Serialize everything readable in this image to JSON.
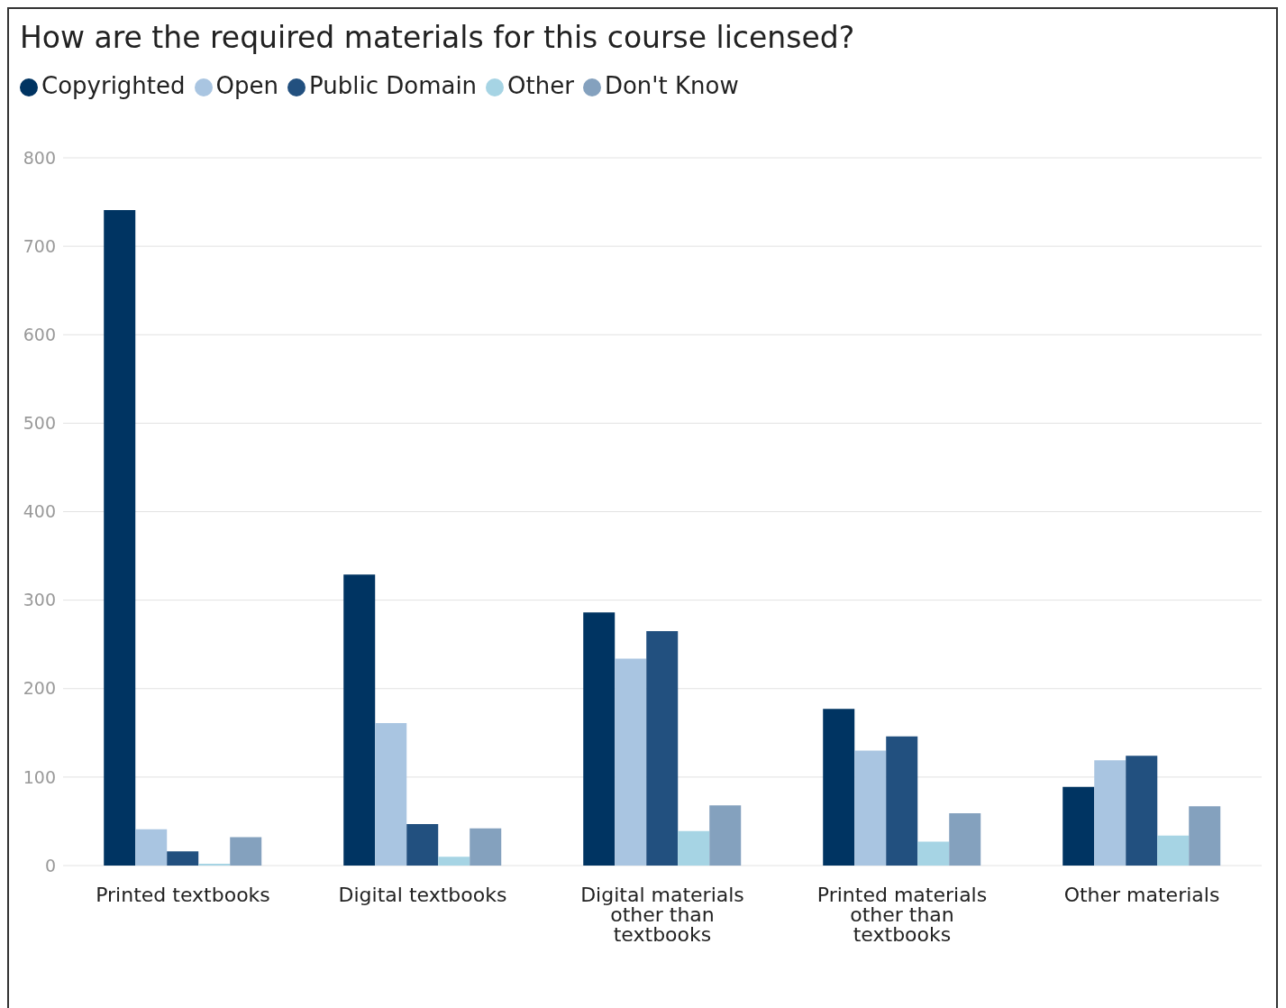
{
  "chart_data": {
    "type": "bar",
    "title": "How are the required materials for this course licensed?",
    "categories": [
      "Printed textbooks",
      "Digital textbooks",
      "Digital materials other than textbooks",
      "Printed materials other than textbooks",
      "Other materials"
    ],
    "series": [
      {
        "name": "Copyrighted",
        "color": "#003462",
        "values": [
          741,
          329,
          286,
          177,
          89
        ]
      },
      {
        "name": "Open",
        "color": "#a9c5e1",
        "values": [
          41,
          161,
          234,
          130,
          119
        ]
      },
      {
        "name": "Public Domain",
        "color": "#22507f",
        "values": [
          16,
          47,
          265,
          146,
          124
        ]
      },
      {
        "name": "Other",
        "color": "#a6d4e4",
        "values": [
          2,
          10,
          39,
          27,
          34
        ]
      },
      {
        "name": "Don't Know",
        "color": "#84a1be",
        "values": [
          32,
          42,
          68,
          59,
          67
        ]
      }
    ],
    "ylim": [
      0,
      800
    ],
    "yticks": [
      0,
      100,
      200,
      300,
      400,
      500,
      600,
      700,
      800
    ],
    "grid": "y",
    "legend": "top left"
  }
}
